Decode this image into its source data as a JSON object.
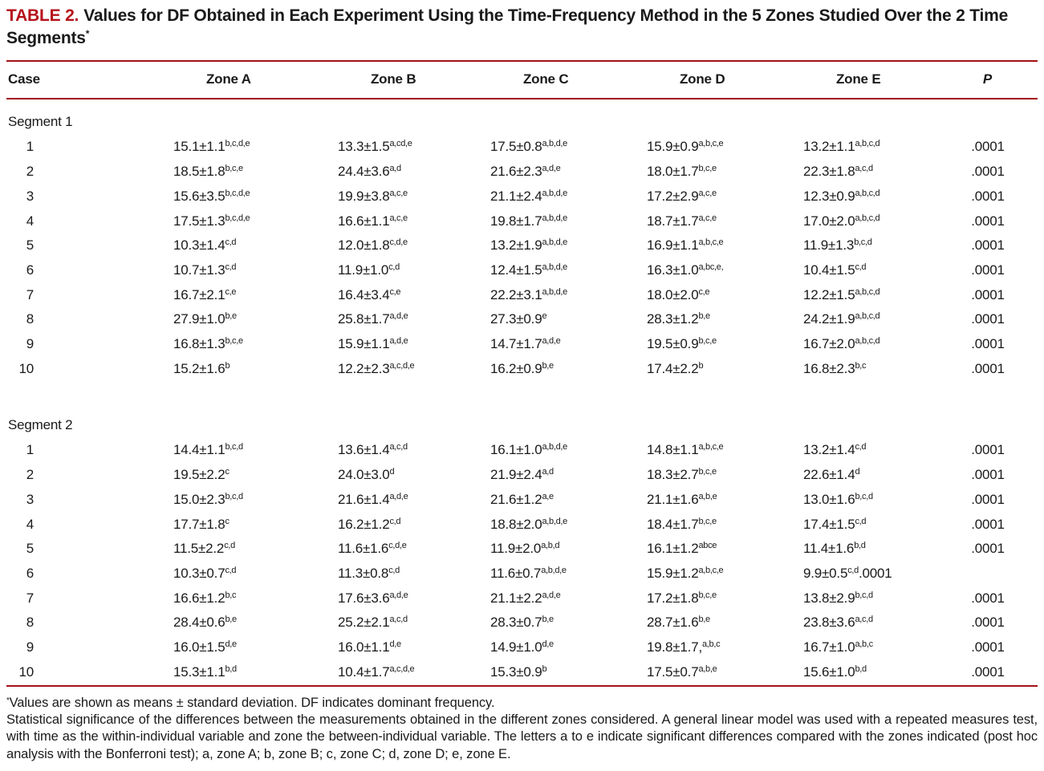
{
  "colors": {
    "accent": "#b5121b",
    "rule": "#a31217"
  },
  "title": {
    "label": "TABLE 2.",
    "text": "Values for DF Obtained in Each Experiment Using the Time-Frequency Method in the 5 Zones Studied Over the 2 Time Segments",
    "asterisk": "*"
  },
  "columns": [
    "Case",
    "Zone A",
    "Zone B",
    "Zone C",
    "Zone D",
    "Zone E",
    "P"
  ],
  "segments": [
    {
      "label": "Segment 1",
      "rows": [
        {
          "case": "1",
          "zones": [
            {
              "v": "15.1±1.1",
              "s": "b,c,d,e"
            },
            {
              "v": "13.3±1.5",
              "s": "a,cd,e"
            },
            {
              "v": "17.5±0.8",
              "s": "a,b,d,e"
            },
            {
              "v": "15.9±0.9",
              "s": "a,b,c,e"
            },
            {
              "v": "13.2±1.1",
              "s": "a,b,c,d"
            }
          ],
          "p": ".0001"
        },
        {
          "case": "2",
          "zones": [
            {
              "v": "18.5±1.8",
              "s": "b,c,e"
            },
            {
              "v": "24.4±3.6",
              "s": "a,d"
            },
            {
              "v": "21.6±2.3",
              "s": "a,d,e"
            },
            {
              "v": "18.0±1.7",
              "s": "b,c,e"
            },
            {
              "v": "22.3±1.8",
              "s": "a,c,d"
            }
          ],
          "p": ".0001"
        },
        {
          "case": "3",
          "zones": [
            {
              "v": "15.6±3.5",
              "s": "b,c,d,e"
            },
            {
              "v": "19.9±3.8",
              "s": "a,c,e"
            },
            {
              "v": "21.1±2.4",
              "s": "a,b,d,e"
            },
            {
              "v": "17.2±2.9",
              "s": "a,c,e"
            },
            {
              "v": "12.3±0.9",
              "s": "a,b,c,d"
            }
          ],
          "p": ".0001"
        },
        {
          "case": "4",
          "zones": [
            {
              "v": "17.5±1.3",
              "s": "b,c,d,e"
            },
            {
              "v": "16.6±1.1",
              "s": "a,c,e"
            },
            {
              "v": "19.8±1.7",
              "s": "a,b,d,e"
            },
            {
              "v": "18.7±1.7",
              "s": "a,c,e"
            },
            {
              "v": "17.0±2.0",
              "s": "a,b,c,d"
            }
          ],
          "p": ".0001"
        },
        {
          "case": "5",
          "zones": [
            {
              "v": "10.3±1.4",
              "s": "c,d"
            },
            {
              "v": "12.0±1.8",
              "s": "c,d,e"
            },
            {
              "v": "13.2±1.9",
              "s": "a,b,d,e"
            },
            {
              "v": "16.9±1.1",
              "s": "a,b,c,e"
            },
            {
              "v": "11.9±1.3",
              "s": "b,c,d"
            }
          ],
          "p": ".0001"
        },
        {
          "case": "6",
          "zones": [
            {
              "v": "10.7±1.3",
              "s": "c,d"
            },
            {
              "v": "11.9±1.0",
              "s": "c,d"
            },
            {
              "v": "12.4±1.5",
              "s": "a,b,d,e"
            },
            {
              "v": "16.3±1.0",
              "s": "a,bc,e,"
            },
            {
              "v": "10.4±1.5",
              "s": "c,d"
            }
          ],
          "p": ".0001"
        },
        {
          "case": "7",
          "zones": [
            {
              "v": "16.7±2.1",
              "s": "c,e"
            },
            {
              "v": "16.4±3.4",
              "s": "c,e"
            },
            {
              "v": "22.2±3.1",
              "s": "a,b,d,e"
            },
            {
              "v": "18.0±2.0",
              "s": "c,e"
            },
            {
              "v": "12.2±1.5",
              "s": "a,b,c,d"
            }
          ],
          "p": ".0001"
        },
        {
          "case": "8",
          "zones": [
            {
              "v": "27.9±1.0",
              "s": "b,e"
            },
            {
              "v": "25.8±1.7",
              "s": "a,d,e"
            },
            {
              "v": "27.3±0.9",
              "s": "e"
            },
            {
              "v": "28.3±1.2",
              "s": "b,e"
            },
            {
              "v": "24.2±1.9",
              "s": "a,b,c,d"
            }
          ],
          "p": ".0001"
        },
        {
          "case": "9",
          "zones": [
            {
              "v": "16.8±1.3",
              "s": "b,c,e"
            },
            {
              "v": "15.9±1.1",
              "s": "a,d,e"
            },
            {
              "v": "14.7±1.7",
              "s": "a,d,e"
            },
            {
              "v": "19.5±0.9",
              "s": "b,c,e"
            },
            {
              "v": "16.7±2.0",
              "s": "a,b,c,d"
            }
          ],
          "p": ".0001"
        },
        {
          "case": "10",
          "zones": [
            {
              "v": "15.2±1.6",
              "s": "b"
            },
            {
              "v": "12.2±2.3",
              "s": "a,c,d,e"
            },
            {
              "v": "16.2±0.9",
              "s": "b,e"
            },
            {
              "v": "17.4±2.2",
              "s": "b"
            },
            {
              "v": "16.8±2.3",
              "s": "b,c"
            }
          ],
          "p": ".0001"
        }
      ]
    },
    {
      "label": "Segment 2",
      "rows": [
        {
          "case": "1",
          "zones": [
            {
              "v": "14.4±1.1",
              "s": "b,c,d"
            },
            {
              "v": "13.6±1.4",
              "s": "a,c,d"
            },
            {
              "v": "16.1±1.0",
              "s": "a,b,d,e"
            },
            {
              "v": "14.8±1.1",
              "s": "a,b,c,e"
            },
            {
              "v": "13.2±1.4",
              "s": "c,d"
            }
          ],
          "p": ".0001"
        },
        {
          "case": "2",
          "zones": [
            {
              "v": "19.5±2.2",
              "s": "c"
            },
            {
              "v": "24.0±3.0",
              "s": "d"
            },
            {
              "v": "21.9±2.4",
              "s": "a,d"
            },
            {
              "v": "18.3±2.7",
              "s": "b,c,e"
            },
            {
              "v": "22.6±1.4",
              "s": "d"
            }
          ],
          "p": ".0001"
        },
        {
          "case": "3",
          "zones": [
            {
              "v": "15.0±2.3",
              "s": "b,c,d"
            },
            {
              "v": "21.6±1.4",
              "s": "a,d,e"
            },
            {
              "v": "21.6±1.2",
              "s": "a,e"
            },
            {
              "v": "21.1±1.6",
              "s": "a,b,e"
            },
            {
              "v": "13.0±1.6",
              "s": "b,c,d"
            }
          ],
          "p": ".0001"
        },
        {
          "case": "4",
          "zones": [
            {
              "v": "17.7±1.8",
              "s": "c"
            },
            {
              "v": "16.2±1.2",
              "s": "c,d"
            },
            {
              "v": "18.8±2.0",
              "s": "a,b,d,e"
            },
            {
              "v": "18.4±1.7",
              "s": "b,c,e"
            },
            {
              "v": "17.4±1.5",
              "s": "c,d"
            }
          ],
          "p": ".0001"
        },
        {
          "case": "5",
          "zones": [
            {
              "v": "11.5±2.2",
              "s": "c,d"
            },
            {
              "v": "11.6±1.6",
              "s": "c,d,e"
            },
            {
              "v": "11.9±2.0",
              "s": "a,b,d"
            },
            {
              "v": "16.1±1.2",
              "s": "abce"
            },
            {
              "v": "11.4±1.6",
              "s": "b,d"
            }
          ],
          "p": ".0001"
        },
        {
          "case": "6",
          "zones": [
            {
              "v": "10.3±0.7",
              "s": "c,d"
            },
            {
              "v": "11.3±0.8",
              "s": "c,d"
            },
            {
              "v": "11.6±0.7",
              "s": "a,b,d,e"
            },
            {
              "v": "15.9±1.2",
              "s": "a,b,c,e"
            },
            {
              "v": "9.9±0.5",
              "s": "c,d",
              "t": ".0001"
            }
          ],
          "p": ""
        },
        {
          "case": "7",
          "zones": [
            {
              "v": "16.6±1.2",
              "s": "b,c"
            },
            {
              "v": "17.6±3.6",
              "s": "a,d,e"
            },
            {
              "v": "21.1±2.2",
              "s": "a,d,e"
            },
            {
              "v": "17.2±1.8",
              "s": "b,c,e"
            },
            {
              "v": "13.8±2.9",
              "s": "b,c,d"
            }
          ],
          "p": ".0001"
        },
        {
          "case": "8",
          "zones": [
            {
              "v": "28.4±0.6",
              "s": "b,e"
            },
            {
              "v": "25.2±2.1",
              "s": "a,c,d"
            },
            {
              "v": "28.3±0.7",
              "s": "b,e"
            },
            {
              "v": "28.7±1.6",
              "s": "b,e"
            },
            {
              "v": "23.8±3.6",
              "s": "a,c,d"
            }
          ],
          "p": ".0001"
        },
        {
          "case": "9",
          "zones": [
            {
              "v": "16.0±1.5",
              "s": "d,e"
            },
            {
              "v": "16.0±1.1",
              "s": "d,e"
            },
            {
              "v": "14.9±1.0",
              "s": "d,e"
            },
            {
              "v": "19.8±1.7,",
              "s": "a,b,c"
            },
            {
              "v": "16.7±1.0",
              "s": "a,b,c"
            }
          ],
          "p": ".0001"
        },
        {
          "case": "10",
          "zones": [
            {
              "v": "15.3±1.1",
              "s": "b,d"
            },
            {
              "v": "10.4±1.7",
              "s": "a,c,d,e"
            },
            {
              "v": "15.3±0.9",
              "s": "b"
            },
            {
              "v": "17.5±0.7",
              "s": "a,b,e"
            },
            {
              "v": "15.6±1.0",
              "s": "b,d"
            }
          ],
          "p": ".0001"
        }
      ]
    }
  ],
  "footnotes": {
    "star": "*",
    "line1": "Values are shown as means ± standard deviation. DF indicates dominant frequency.",
    "line2": "Statistical significance of the differences between the measurements obtained in the different zones considered. A general linear model was used with a repeated measures test, with time as the within-individual variable and zone the between-individual variable. The letters a to e indicate significant differences compared with the zones indicated (post hoc analysis with the Bonferroni test); a, zone A; b, zone B; c, zone C; d, zone D; e, zone E."
  }
}
